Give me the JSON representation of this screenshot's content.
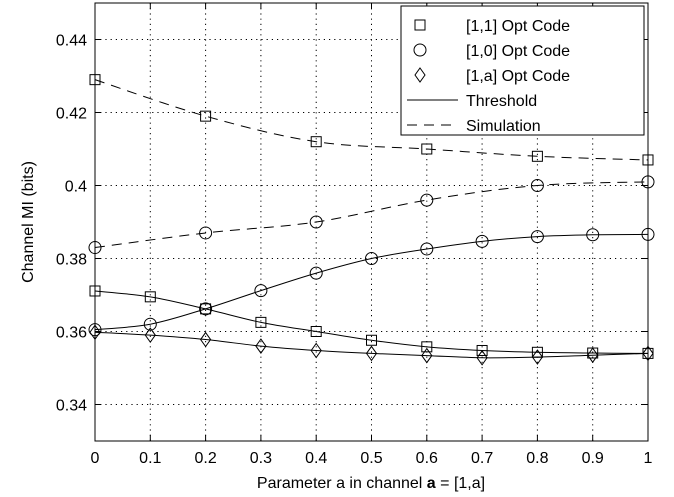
{
  "chart_data": {
    "type": "line",
    "title": "",
    "xlabel_prefix": "Parameter a in channel ",
    "xlabel_bold": "a",
    "xlabel_suffix": " = [1,a]",
    "ylabel": "Channel MI (bits)",
    "xlim": [
      0,
      1
    ],
    "ylim": [
      0.33,
      0.45
    ],
    "xticks": [
      0,
      0.1,
      0.2,
      0.3,
      0.4,
      0.5,
      0.6,
      0.7,
      0.8,
      0.9,
      1
    ],
    "xtick_labels": [
      "0",
      "0.1",
      "0.2",
      "0.3",
      "0.4",
      "0.5",
      "0.6",
      "0.7",
      "0.8",
      "0.9",
      "1"
    ],
    "yticks": [
      0.34,
      0.36,
      0.38,
      0.4,
      0.42,
      0.44
    ],
    "ytick_labels": [
      "0.34",
      "0.36",
      "0.38",
      "0.4",
      "0.42",
      "0.44"
    ],
    "grid": true,
    "legend_position": "top-right",
    "legend": {
      "markers": [
        {
          "label": "[1,1] Opt Code",
          "marker": "square"
        },
        {
          "label": "[1,0] Opt Code",
          "marker": "circle"
        },
        {
          "label": "[1,a] Opt Code",
          "marker": "diamond"
        }
      ],
      "lines": [
        {
          "label": "Threshold",
          "style": "solid"
        },
        {
          "label": "Simulation",
          "style": "dashed"
        }
      ]
    },
    "series": [
      {
        "code": "[1,1] Opt Code",
        "method": "Simulation",
        "marker": "square",
        "line": "dashed",
        "x": [
          0,
          0.2,
          0.4,
          0.6,
          0.8,
          1
        ],
        "y": [
          0.429,
          0.419,
          0.412,
          0.41,
          0.408,
          0.407
        ]
      },
      {
        "code": "[1,0] Opt Code",
        "method": "Simulation",
        "marker": "circle",
        "line": "dashed",
        "x": [
          0,
          0.2,
          0.4,
          0.6,
          0.8,
          1
        ],
        "y": [
          0.383,
          0.387,
          0.39,
          0.396,
          0.4,
          0.401
        ]
      },
      {
        "code": "[1,1] Opt Code",
        "method": "Threshold",
        "marker": "square",
        "line": "solid",
        "x": [
          0,
          0.1,
          0.2,
          0.3,
          0.4,
          0.5,
          0.6,
          0.7,
          0.8,
          0.9,
          1
        ],
        "y": [
          0.3711,
          0.3695,
          0.3662,
          0.3625,
          0.36,
          0.3576,
          0.3558,
          0.3548,
          0.3543,
          0.3541,
          0.354
        ]
      },
      {
        "code": "[1,0] Opt Code",
        "method": "Threshold",
        "marker": "circle",
        "line": "solid",
        "x": [
          0,
          0.1,
          0.2,
          0.3,
          0.4,
          0.5,
          0.6,
          0.7,
          0.8,
          0.9,
          1
        ],
        "y": [
          0.3605,
          0.362,
          0.3662,
          0.3712,
          0.376,
          0.38,
          0.3826,
          0.3847,
          0.386,
          0.3865,
          0.3866
        ]
      },
      {
        "code": "[1,a] Opt Code",
        "method": "Threshold",
        "marker": "diamond",
        "line": "solid",
        "x": [
          0,
          0.1,
          0.2,
          0.3,
          0.4,
          0.5,
          0.6,
          0.7,
          0.8,
          0.9,
          1
        ],
        "y": [
          0.3598,
          0.359,
          0.3578,
          0.356,
          0.3548,
          0.354,
          0.3534,
          0.3528,
          0.353,
          0.3535,
          0.354
        ]
      }
    ]
  }
}
